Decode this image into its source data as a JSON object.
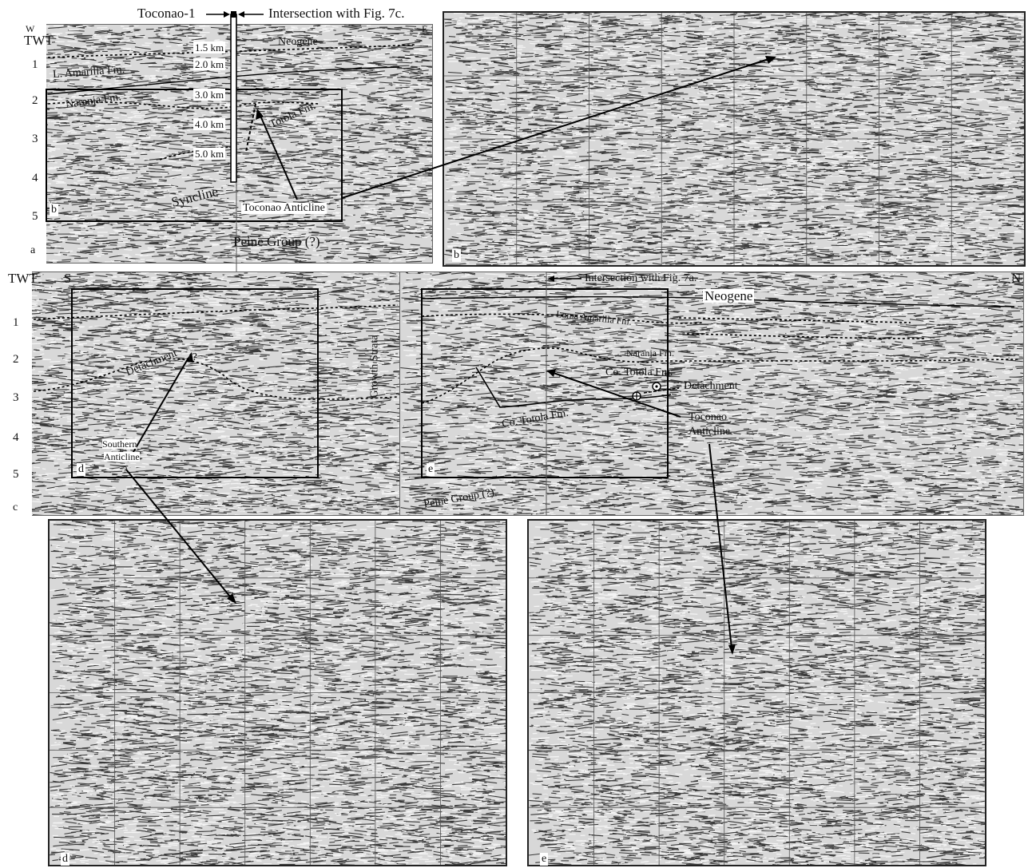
{
  "figure": {
    "top_section": {
      "well_label": "Toconao-1",
      "intersection_label": "Intersection with  Fig. 7c.",
      "compass_left": "W",
      "compass_right": "E",
      "axis_title": "TWT",
      "axis_ticks": [
        "1",
        "2",
        "3",
        "4",
        "5"
      ],
      "depth_marks": [
        "1.5 km",
        "2.0 km",
        "3.0 km",
        "4.0 km",
        "5.0 km"
      ],
      "formations": {
        "neogene": "Neogene",
        "amarilla": "L. Amarilla Fm.",
        "naranja": "Naranja Fm.",
        "totola": "Totola Fm.",
        "syncline": "Syncline",
        "anticline": "Toconao Anticline",
        "peine": "Peine Group  (?)"
      },
      "panel_a_letter": "a",
      "panel_b_inset_letter": "b",
      "panel_b_letter": "b"
    },
    "middle_section": {
      "axis_title": "TWT",
      "compass_left": "S",
      "compass_right": "N",
      "axis_ticks": [
        "1",
        "2",
        "3",
        "4",
        "5"
      ],
      "intersection_label": "Intersection with Fig. 7a.",
      "left": {
        "detachment": "Detachment",
        "question": "(?",
        "growth": "Growth Strata",
        "southern": "Southern",
        "anticline": "Anticline",
        "question_mark": "?",
        "inset_letter": "d"
      },
      "right": {
        "neogene": "Neogene",
        "loma": "Loma Amarilla Fm.",
        "naranja": "Naranja Fm.",
        "co_totola_upper": "Co. Totola Fm.",
        "co_totola_lower": "Co. Totola Fm.",
        "detachment": "Detachment",
        "toconao": "Toconao",
        "anticline": "Anticline",
        "peine": "Peine Group (?)",
        "q1": "?",
        "q2": "?",
        "inset_letter": "e"
      },
      "panel_letter": "c"
    },
    "bottom_section": {
      "panel_d_letter": "d",
      "panel_e_letter": "e"
    }
  }
}
